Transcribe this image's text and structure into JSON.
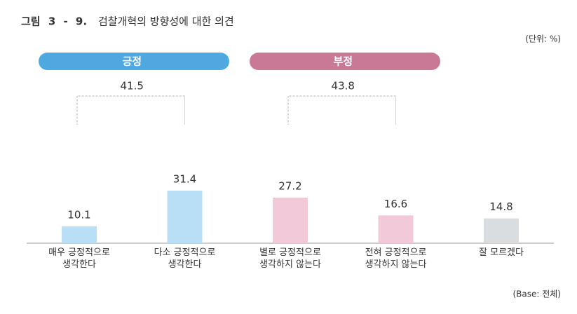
{
  "chart_data": {
    "type": "bar",
    "figure_label": "그림 3 - 9.",
    "title": "검찰개혁의 방향성에 대한 의견",
    "unit": "(단위: %)",
    "base": "(Base: 전체)",
    "categories": [
      "매우 긍정적으로\n생각한다",
      "다소 긍정적으로\n생각한다",
      "별로 긍정적으로\n생각하지 않는다",
      "전혀 긍정적으로\n생각하지 않는다",
      "잘 모르겠다"
    ],
    "values": [
      10.1,
      31.4,
      27.2,
      16.6,
      14.8
    ],
    "colors": [
      "#b9dff7",
      "#b9dff7",
      "#f2c9d9",
      "#f2c9d9",
      "#d9dde0"
    ],
    "groups": [
      {
        "name": "긍정",
        "value": 41.5,
        "color": "#4ea9e0"
      },
      {
        "name": "부정",
        "value": 43.8,
        "color": "#c97896"
      }
    ]
  }
}
